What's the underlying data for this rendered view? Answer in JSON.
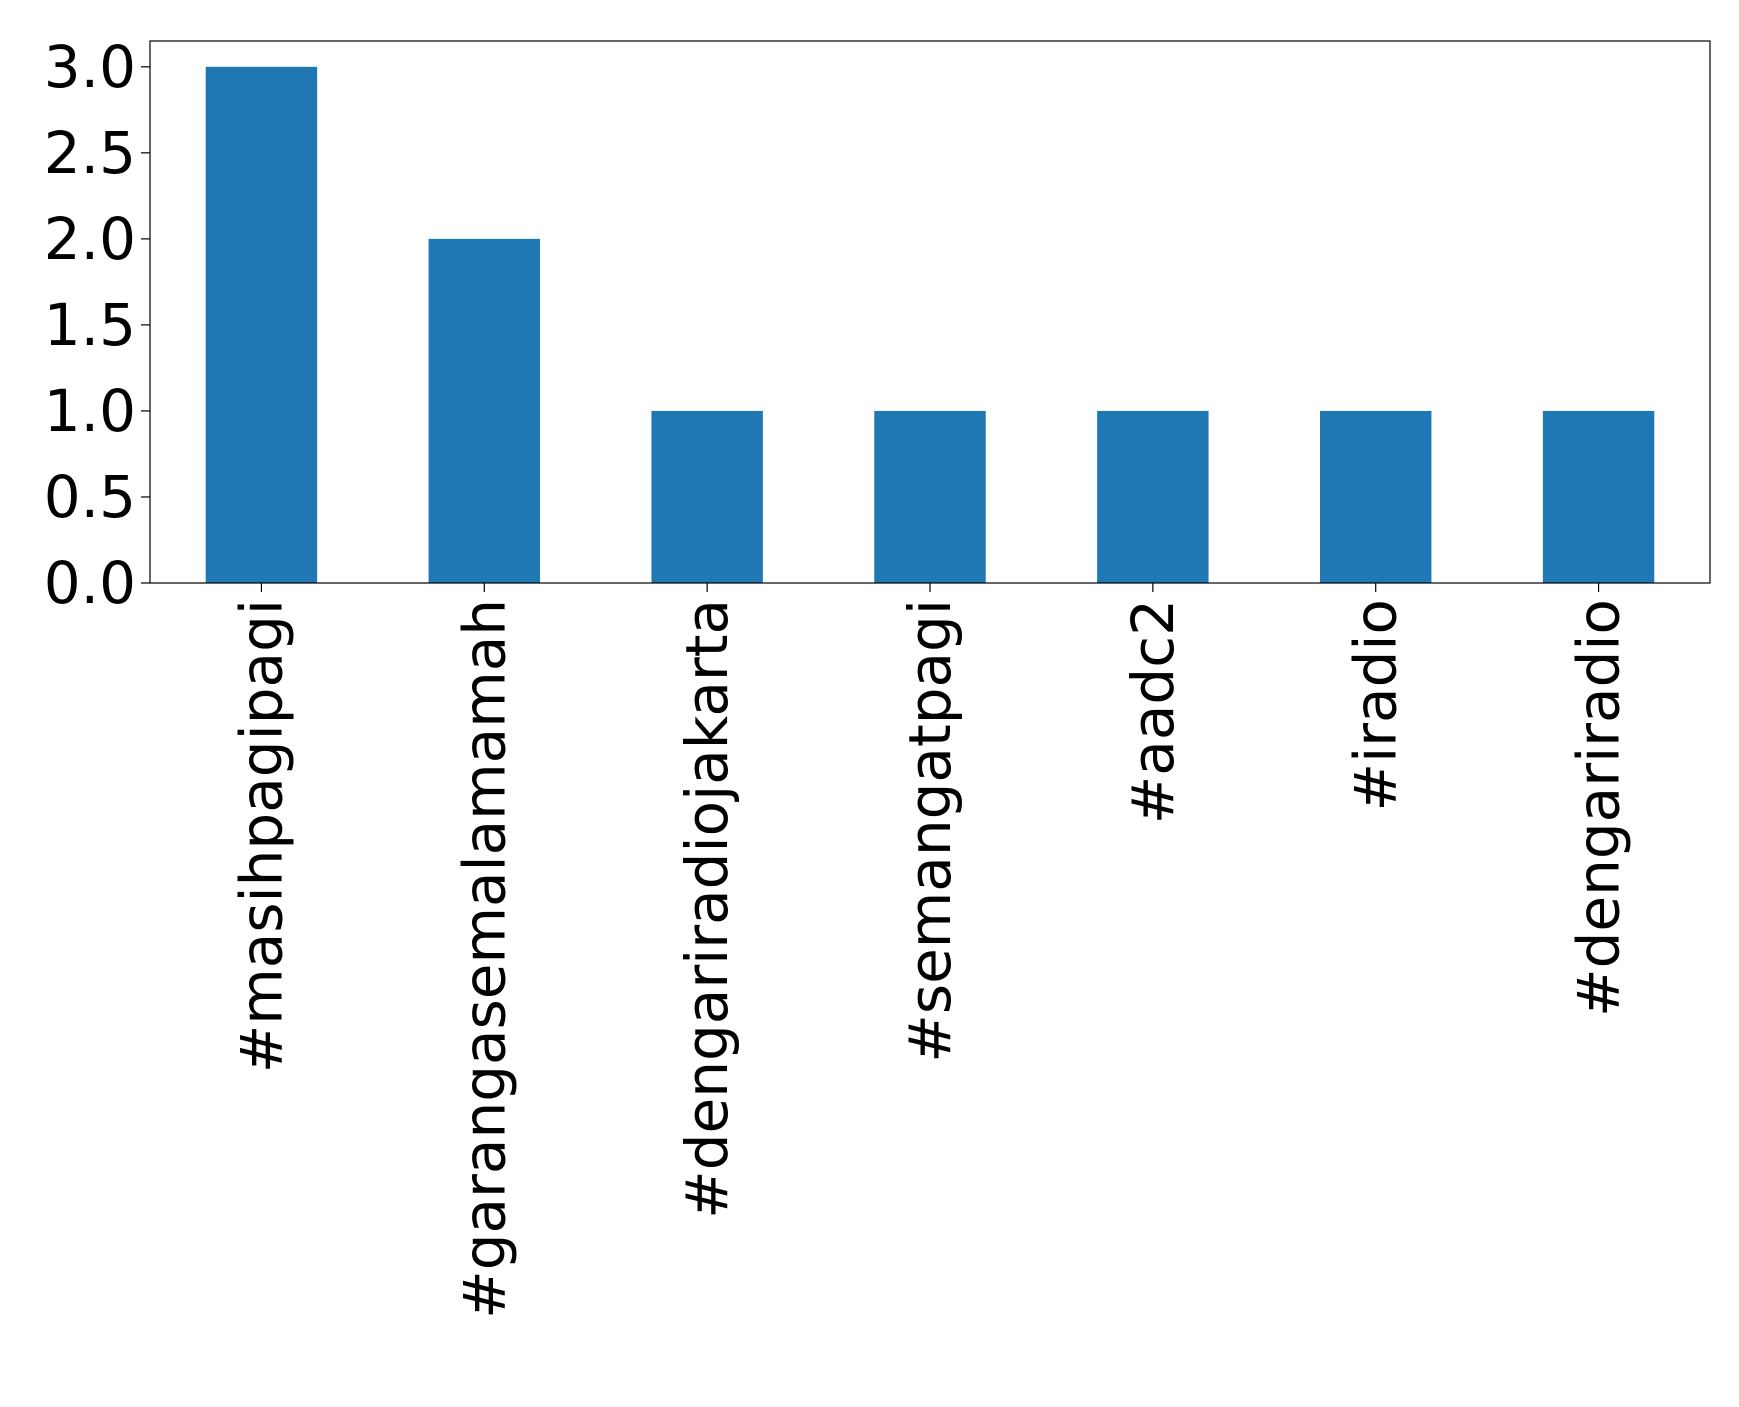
{
  "chart_data": {
    "type": "bar",
    "title": "",
    "xlabel": "",
    "ylabel": "",
    "categories": [
      "#masihpagipagi",
      "#garangasemalamamah",
      "#dengariradiojakarta",
      "#semangatpagi",
      "#aadc2",
      "#iradio",
      "#dengariradio"
    ],
    "values": [
      3,
      2,
      1,
      1,
      1,
      1,
      1
    ],
    "ylim": [
      0,
      3.15
    ],
    "yticks": [
      0.0,
      0.5,
      1.0,
      1.5,
      2.0,
      2.5,
      3.0
    ],
    "ytick_labels": [
      "0.0",
      "0.5",
      "1.0",
      "1.5",
      "2.0",
      "2.5",
      "3.0"
    ],
    "grid": false,
    "legend": "none",
    "bar_color": "#1f77b4",
    "x_tick_rotation": "vertical"
  }
}
